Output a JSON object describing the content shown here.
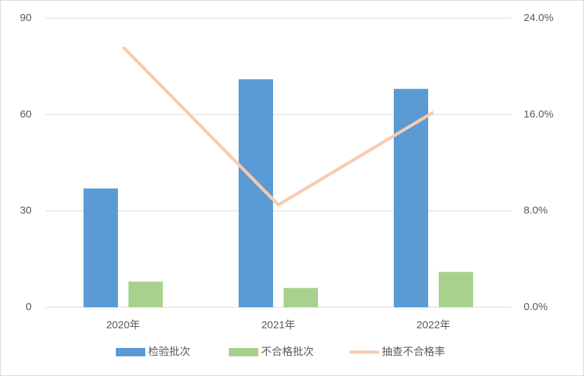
{
  "chart_data": {
    "type": "bar-line",
    "categories": [
      "2020年",
      "2021年",
      "2022年"
    ],
    "series": [
      {
        "name": "检验批次",
        "color": "#5b9bd5",
        "type": "bar",
        "values": [
          37,
          71,
          68
        ]
      },
      {
        "name": "不合格批次",
        "color": "#a9d18e",
        "type": "bar",
        "values": [
          8,
          6,
          11
        ]
      },
      {
        "name": "抽查不合格率",
        "color": "#f8cbad",
        "type": "line",
        "axis": "y2",
        "values": [
          21.6,
          8.5,
          16.2
        ]
      }
    ],
    "ylim": [
      0,
      90
    ],
    "yticks": [
      0,
      30,
      60,
      90
    ],
    "y2lim": [
      0,
      24
    ],
    "y2ticks": [
      {
        "value": 0,
        "label": "0.0%"
      },
      {
        "value": 8,
        "label": "8.0%"
      },
      {
        "value": 16,
        "label": "16.0%"
      },
      {
        "value": 24,
        "label": "24.0%"
      }
    ],
    "grid": true,
    "legend": "bottom"
  }
}
